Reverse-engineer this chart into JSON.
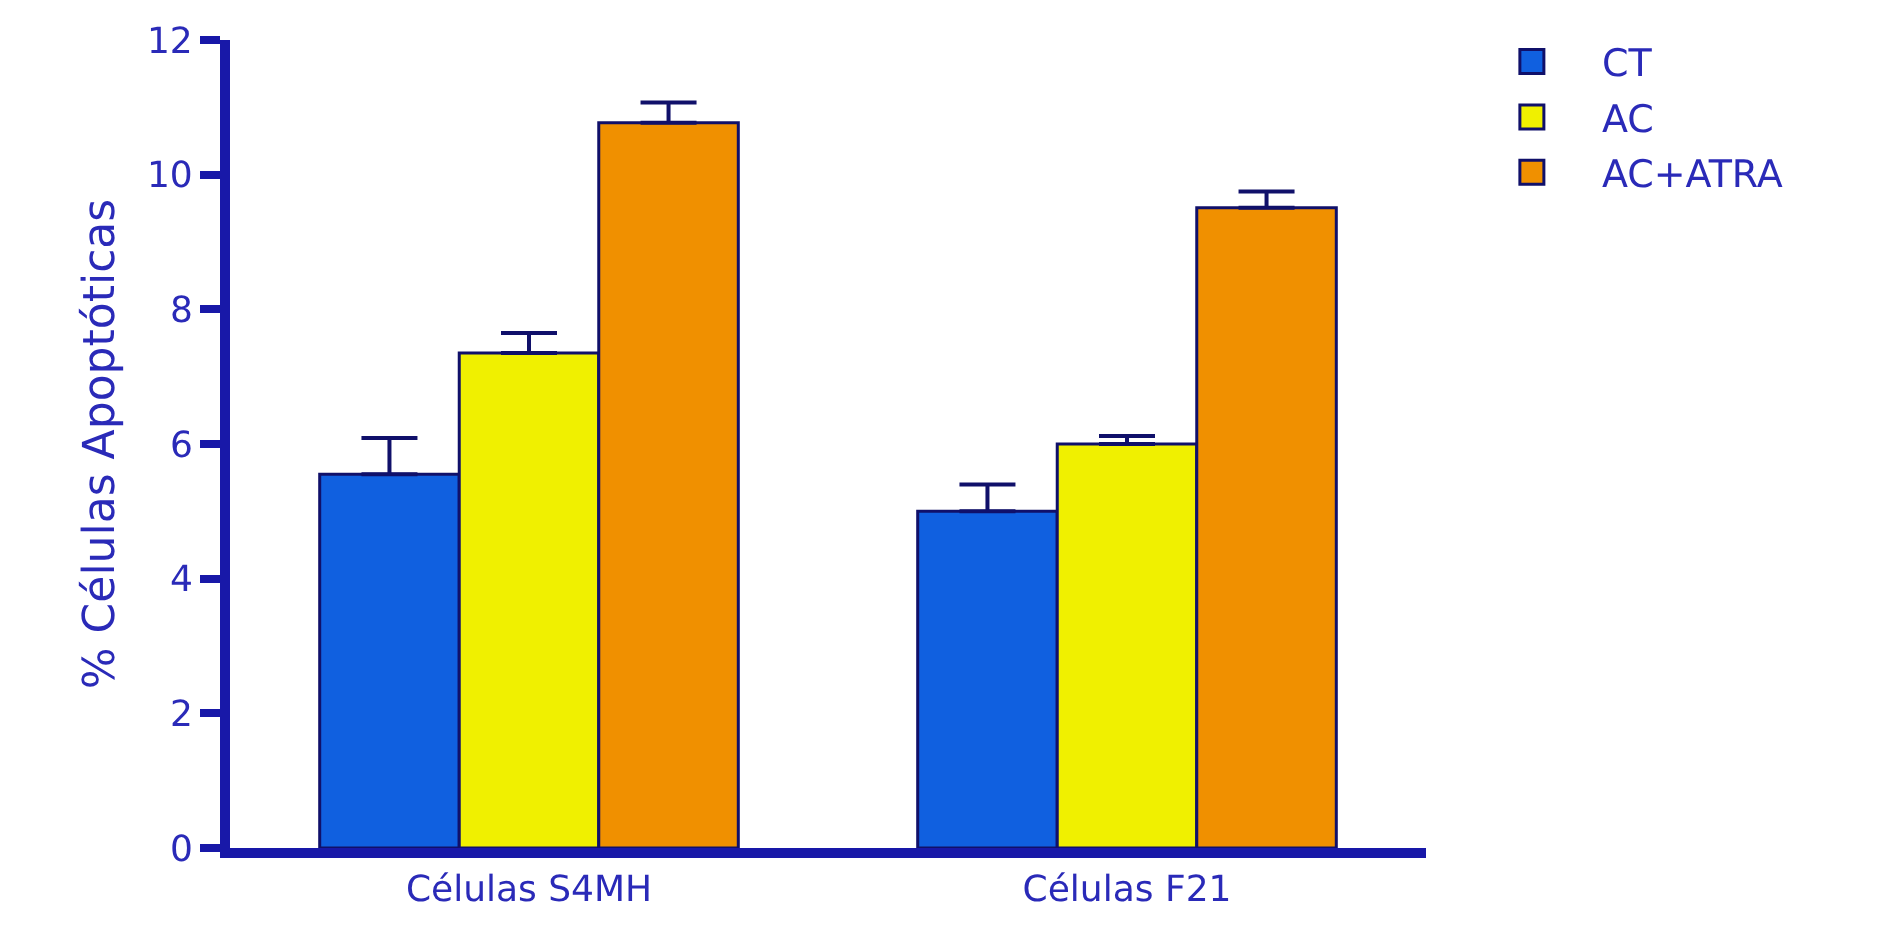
{
  "chart_data": {
    "type": "bar",
    "ylabel": "% Células Apoptóticas",
    "categories": [
      "Células S4MH",
      "Células F21"
    ],
    "series": [
      {
        "name": "CT",
        "color": "#1060e0",
        "values": [
          5.55,
          5.0
        ],
        "errors": [
          [
            5.55,
            6.09
          ],
          [
            5.0,
            5.4
          ]
        ]
      },
      {
        "name": "AC",
        "color": "#f0f000",
        "values": [
          7.35,
          6.0
        ],
        "errors": [
          [
            7.35,
            7.65
          ],
          [
            6.0,
            6.12
          ]
        ]
      },
      {
        "name": "AC+ATRA",
        "color": "#f09000",
        "values": [
          10.77,
          9.51
        ],
        "errors": [
          [
            10.77,
            11.07
          ],
          [
            9.51,
            9.75
          ]
        ]
      }
    ],
    "ylim": [
      0,
      12
    ],
    "yticks": [
      0,
      2,
      4,
      6,
      8,
      10,
      12
    ],
    "grid": false,
    "legend": "top right"
  }
}
